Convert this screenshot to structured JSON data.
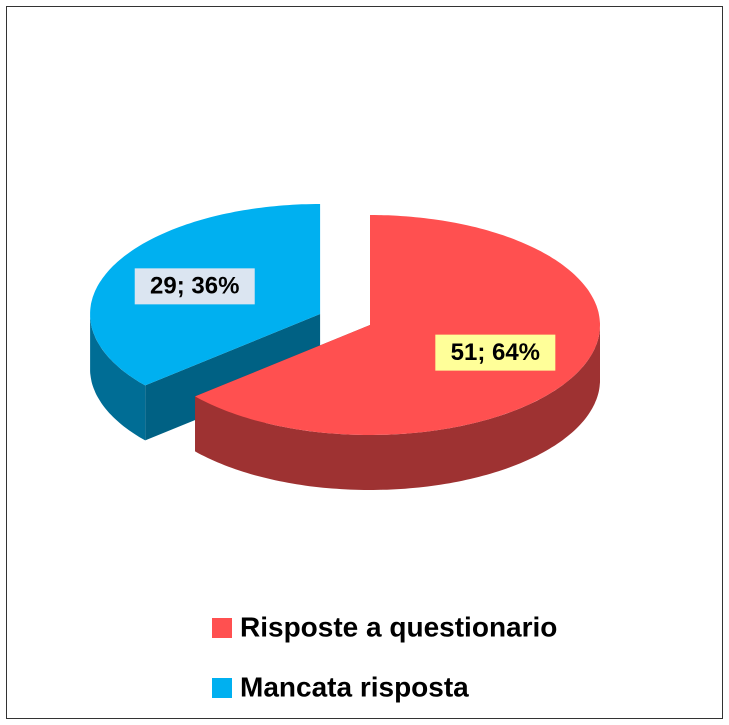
{
  "chart_data": {
    "type": "pie",
    "categories": [
      "Risposte a questionario",
      "Mancata risposta"
    ],
    "values": [
      51,
      29
    ],
    "value_labels": [
      "51; 64%",
      "29; 36%"
    ],
    "colors": [
      "#ff5050",
      "#00b0f0"
    ],
    "label_backgrounds": [
      "#ffff99",
      "#dbe5f1"
    ],
    "legend": "bottom"
  }
}
